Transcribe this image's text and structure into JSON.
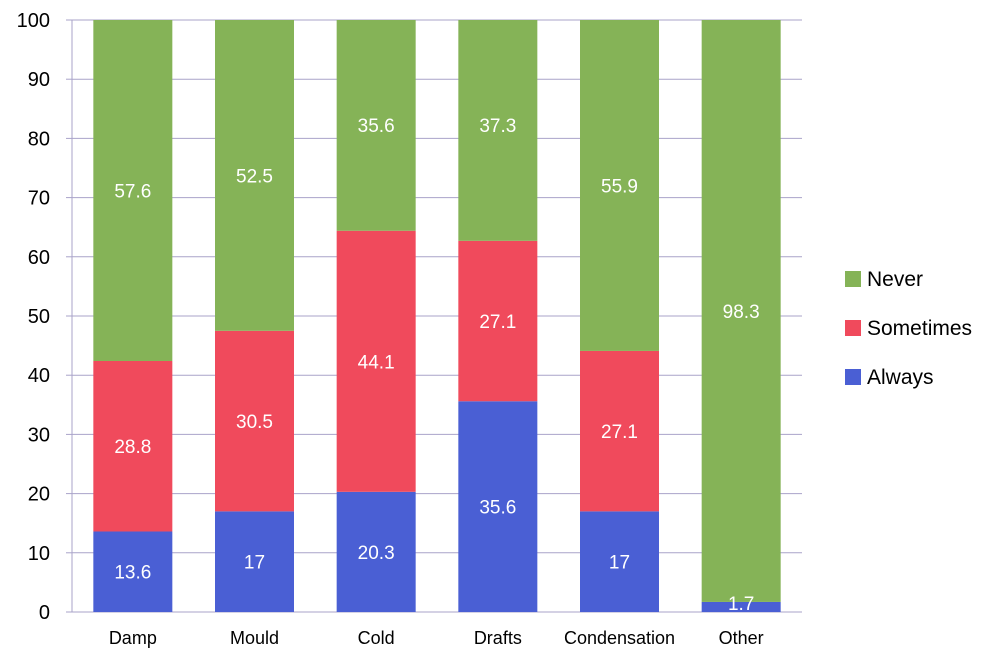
{
  "chart_data": {
    "type": "bar",
    "stacked": true,
    "categories": [
      "Damp",
      "Mould",
      "Cold",
      "Drafts",
      "Condensation",
      "Other"
    ],
    "series": [
      {
        "name": "Always",
        "color": "#4a5fd4",
        "values": [
          13.6,
          17,
          20.3,
          35.6,
          17,
          1.7
        ],
        "labels": [
          "13.6",
          "17",
          "20.3",
          "35.6",
          "17",
          "1.7"
        ]
      },
      {
        "name": "Sometimes",
        "color": "#f04a5c",
        "values": [
          28.8,
          30.5,
          44.1,
          27.1,
          27.1,
          0
        ],
        "labels": [
          "28.8",
          "30.5",
          "44.1",
          "27.1",
          "27.1",
          ""
        ]
      },
      {
        "name": "Never",
        "color": "#85b357",
        "values": [
          57.6,
          52.5,
          35.6,
          37.3,
          55.9,
          98.3
        ],
        "labels": [
          "57.6",
          "52.5",
          "35.6",
          "37.3",
          "55.9",
          "98.3"
        ]
      }
    ],
    "legend_order": [
      "Never",
      "Sometimes",
      "Always"
    ],
    "ylim": [
      0,
      100
    ],
    "yticks": [
      "0",
      "10",
      "20",
      "30",
      "40",
      "50",
      "60",
      "70",
      "80",
      "90",
      "100"
    ],
    "grid": true,
    "legend_position": "right",
    "title": "",
    "xlabel": "",
    "ylabel": ""
  }
}
